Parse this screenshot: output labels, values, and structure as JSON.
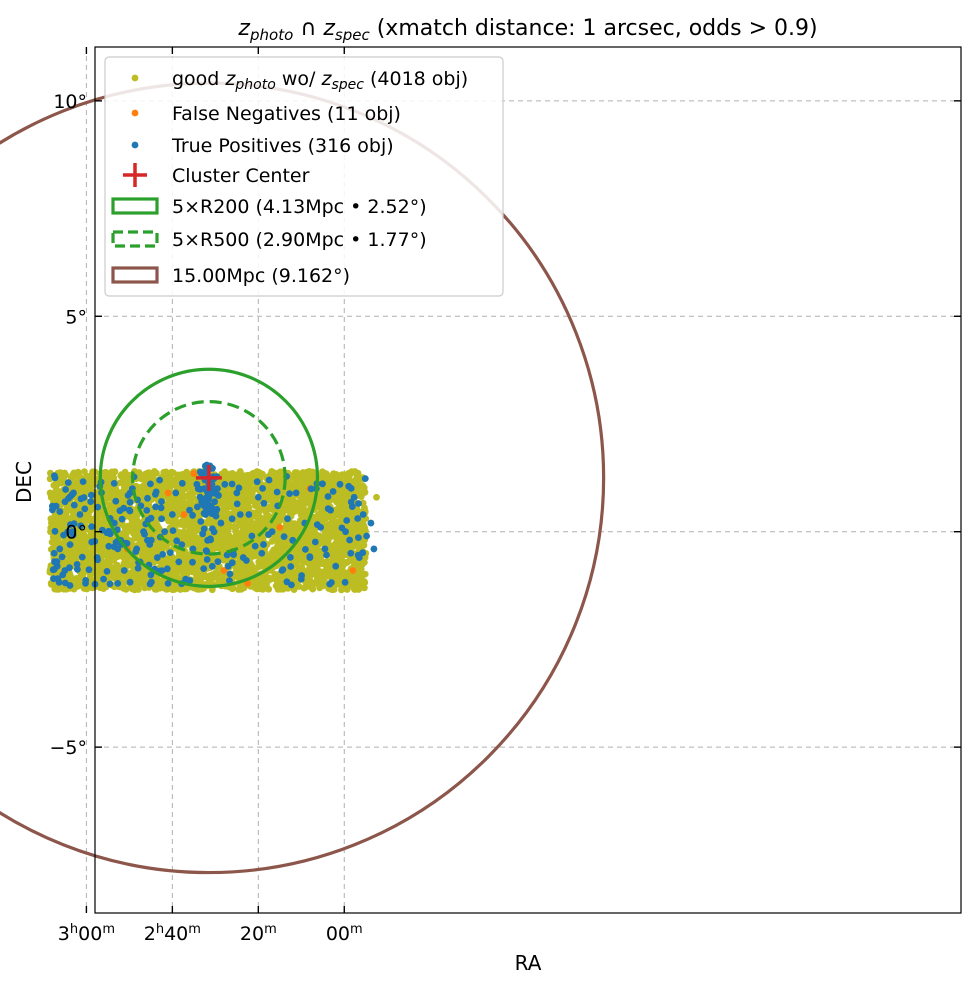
{
  "chart_data": {
    "type": "scatter",
    "title": {
      "parts": [
        {
          "text": "z",
          "italic": true
        },
        {
          "text": "photo",
          "italic": true,
          "sub": true
        },
        {
          "text": " ∩ "
        },
        {
          "text": "z",
          "italic": true
        },
        {
          "text": "spec",
          "italic": true,
          "sub": true
        },
        {
          "text": " (xmatch distance: 1 arcsec, odds > 0.9)"
        }
      ]
    },
    "xlabel": "RA",
    "ylabel": "DEC",
    "xlim_ra_minutes": [
      -23.5,
      178.0
    ],
    "ylim_deg": [
      -8.85,
      11.25
    ],
    "x_ticks": [
      {
        "ra_minutes": 180,
        "main": "3",
        "sup1": "h",
        "mid": "00",
        "sup2": "m"
      },
      {
        "ra_minutes": 160,
        "main": "2",
        "sup1": "h",
        "mid": "40",
        "sup2": "m"
      },
      {
        "ra_minutes": 140,
        "main": "",
        "sup1": "",
        "mid": "20",
        "sup2": "m"
      },
      {
        "ra_minutes": 120,
        "main": "",
        "sup1": "",
        "mid": "00",
        "sup2": "m"
      }
    ],
    "y_ticks": [
      {
        "deg": 10,
        "label": "10°"
      },
      {
        "deg": 5,
        "label": "5°"
      },
      {
        "deg": 0,
        "label": "0°"
      },
      {
        "deg": -5,
        "label": "−5°"
      }
    ],
    "cluster_center": {
      "ra_minutes": 151.5,
      "dec_deg": 1.25
    },
    "stripe": {
      "ra_min_minutes": 115.0,
      "ra_max_minutes": 188.5,
      "dec_min_deg": -1.35,
      "dec_max_deg": 1.4
    },
    "circles": [
      {
        "name": "5×R200",
        "radius_deg": 2.52,
        "style": "solid",
        "color": "#2ca02c"
      },
      {
        "name": "5×R500",
        "radius_deg": 1.77,
        "style": "dashed",
        "color": "#2ca02c"
      },
      {
        "name": "15.00Mpc",
        "radius_deg": 9.162,
        "style": "solid",
        "color": "#8c564b"
      }
    ],
    "series": [
      {
        "name": "good z_photo wo/ z_spec",
        "count": 4018,
        "color": "#bcbd22",
        "points_sample": [
          [
            112.5,
            0.8
          ],
          [
            115,
            -0.5
          ],
          [
            118,
            1.1
          ],
          [
            121,
            0.2
          ],
          [
            124,
            -1.0
          ],
          [
            127,
            0.6
          ],
          [
            130,
            -0.3
          ],
          [
            133,
            1.2
          ],
          [
            136,
            0.0
          ],
          [
            139,
            -0.8
          ],
          [
            142,
            0.9
          ],
          [
            145,
            -0.2
          ],
          [
            148,
            0.4
          ],
          [
            151,
            -1.1
          ],
          [
            154,
            0.7
          ],
          [
            157,
            1.0
          ],
          [
            160,
            -0.6
          ],
          [
            163,
            0.3
          ],
          [
            166,
            -1.2
          ],
          [
            169,
            0.5
          ],
          [
            172,
            1.3
          ],
          [
            175,
            -0.4
          ],
          [
            178,
            0.1
          ],
          [
            181,
            -0.9
          ],
          [
            184,
            0.6
          ]
        ]
      },
      {
        "name": "False Negatives",
        "count": 11,
        "color": "#ff7f0e",
        "points": [
          [
            142.5,
            -1.2
          ],
          [
            148.0,
            -0.9
          ],
          [
            157.3,
            0.4
          ],
          [
            161.0,
            0.9
          ],
          [
            165.0,
            -0.2
          ],
          [
            135.0,
            0.1
          ],
          [
            128.0,
            1.0
          ],
          [
            118.0,
            -0.9
          ],
          [
            150.3,
            1.0
          ],
          [
            155.0,
            1.35
          ],
          [
            170.5,
            -0.4
          ]
        ]
      },
      {
        "name": "True Positives",
        "count": 316,
        "color": "#1f77b4",
        "points": [
          [
            187.5,
            -0.5
          ],
          [
            186.2,
            -0.4
          ],
          [
            185.0,
            -0.9
          ],
          [
            184.2,
            0.0
          ],
          [
            186.8,
            -0.8
          ],
          [
            185.5,
            -1.0
          ],
          [
            183.8,
            -0.3
          ],
          [
            183.0,
            0.9
          ],
          [
            181.5,
            0.4
          ],
          [
            180.2,
            -1.2
          ],
          [
            179.0,
            0.7
          ],
          [
            177.5,
            -0.6
          ],
          [
            176.0,
            -1.1
          ],
          [
            174.5,
            0.3
          ],
          [
            173.5,
            0.2
          ],
          [
            172.0,
            -0.2
          ],
          [
            171.2,
            -0.9
          ],
          [
            170.0,
            0.5
          ],
          [
            169.3,
            1.0
          ],
          [
            168.3,
            -0.4
          ],
          [
            167.5,
            -0.7
          ],
          [
            166.7,
            0.0
          ],
          [
            165.8,
            -0.2
          ],
          [
            165.0,
            -1.0
          ],
          [
            164.2,
            -0.9
          ],
          [
            163.5,
            -0.6
          ],
          [
            162.5,
            0.3
          ],
          [
            161.8,
            0.0
          ],
          [
            161.0,
            -1.2
          ],
          [
            160.0,
            0.4
          ],
          [
            159.2,
            0.9
          ],
          [
            158.5,
            -0.7
          ],
          [
            157.8,
            -0.3
          ],
          [
            156.9,
            -1.1
          ],
          [
            156.0,
            0.5
          ],
          [
            155.2,
            -0.4
          ],
          [
            154.3,
            1.1
          ],
          [
            153.2,
            0.7
          ],
          [
            152.6,
            1.0
          ],
          [
            152.0,
            0.8
          ],
          [
            151.5,
            1.1
          ],
          [
            151.0,
            0.9
          ],
          [
            151.3,
            0.6
          ],
          [
            150.7,
            1.2
          ],
          [
            152.3,
            0.4
          ],
          [
            151.8,
            -0.2
          ],
          [
            150.2,
            0.5
          ],
          [
            149.5,
            1.0
          ],
          [
            148.7,
            0.2
          ],
          [
            147.8,
            1.1
          ],
          [
            147.0,
            -0.8
          ],
          [
            146.1,
            0.3
          ],
          [
            145.0,
            0.9
          ],
          [
            143.5,
            -0.6
          ],
          [
            142.2,
            0.4
          ],
          [
            141.5,
            -0.1
          ],
          [
            140.0,
            0.8
          ],
          [
            139.2,
            -0.5
          ],
          [
            137.5,
            1.2
          ],
          [
            136.8,
            0.0
          ],
          [
            135.5,
            0.6
          ],
          [
            134.5,
            -0.9
          ],
          [
            133.2,
            0.3
          ],
          [
            132.0,
            -0.2
          ],
          [
            131.2,
            0.9
          ],
          [
            130.0,
            -1.1
          ],
          [
            129.2,
            0.2
          ],
          [
            128.0,
            -0.6
          ],
          [
            126.5,
            1.0
          ],
          [
            125.5,
            0.1
          ],
          [
            124.5,
            -0.4
          ],
          [
            123.2,
            0.5
          ],
          [
            122.0,
            -0.8
          ],
          [
            121.0,
            1.1
          ],
          [
            119.7,
            0.0
          ],
          [
            118.5,
            -0.5
          ],
          [
            117.7,
            0.8
          ],
          [
            116.5,
            -0.6
          ],
          [
            115.6,
            0.4
          ],
          [
            114.8,
            -0.1
          ],
          [
            113.8,
            0.2
          ],
          [
            113.1,
            -0.4
          ]
        ]
      }
    ],
    "legend": [
      {
        "kind": "dot",
        "color": "#bcbd22",
        "label": "good z_photo wo/ z_spec (4018 obj)"
      },
      {
        "kind": "dot",
        "color": "#ff7f0e",
        "label": "False Negatives (11 obj)"
      },
      {
        "kind": "dot",
        "color": "#1f77b4",
        "label": "True Positives (316 obj)"
      },
      {
        "kind": "plus",
        "color": "#d62728",
        "label": "Cluster Center"
      },
      {
        "kind": "rect-solid",
        "color": "#2ca02c",
        "label": "5×R200 (4.13Mpc • 2.52°)"
      },
      {
        "kind": "rect-dashed",
        "color": "#2ca02c",
        "label": "5×R500 (2.90Mpc • 1.77°)"
      },
      {
        "kind": "rect-solid",
        "color": "#8c564b",
        "label": "15.00Mpc (9.162°)"
      }
    ]
  }
}
